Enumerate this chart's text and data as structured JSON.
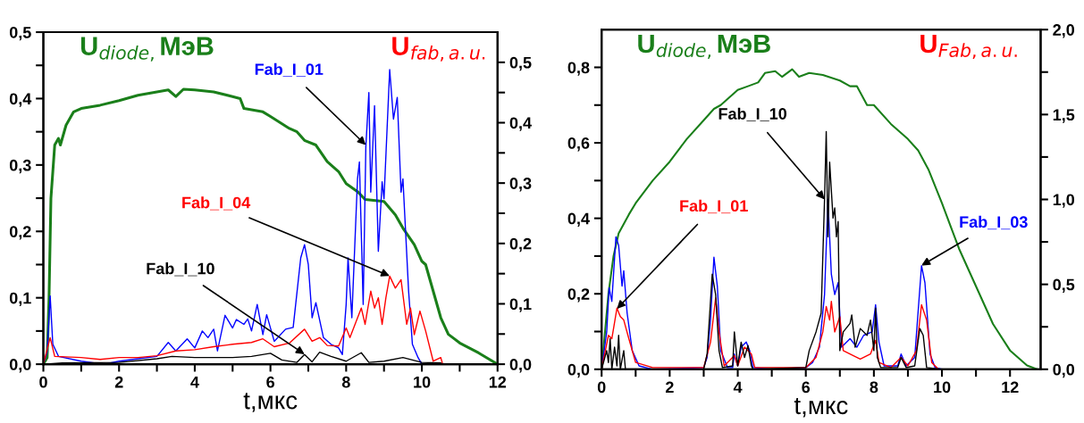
{
  "chart_data": [
    {
      "type": "line",
      "xlabel": "t,мкс",
      "ylabel": "U$_{diode,}$МэВ",
      "y2label": "U$_{fab,a.u.}$",
      "xlim": [
        0,
        12
      ],
      "xticks": [
        0,
        {
          "value": 1,
          "label": null
        },
        2,
        {
          "value": 3,
          "label": null
        },
        4,
        {
          "value": 5,
          "label": null
        },
        6,
        {
          "value": 7,
          "label": null
        },
        8,
        {
          "value": 9,
          "label": null
        },
        10,
        {
          "value": 11,
          "label": null
        },
        12
      ],
      "ylim": [
        0,
        0.5
      ],
      "yticks": [
        {
          "value": 0,
          "label": "0,0"
        },
        {
          "value": 0.05,
          "label": null
        },
        {
          "value": 0.1,
          "label": "0,1"
        },
        {
          "value": 0.15,
          "label": null
        },
        {
          "value": 0.2,
          "label": "0,2"
        },
        {
          "value": 0.25,
          "label": null
        },
        {
          "value": 0.3,
          "label": "0,3"
        },
        {
          "value": 0.35,
          "label": null
        },
        {
          "value": 0.4,
          "label": "0,4"
        },
        {
          "value": 0.45,
          "label": null
        },
        {
          "value": 0.5,
          "label": "0,5"
        }
      ],
      "y2lim": [
        0,
        0.55
      ],
      "y2ticks": [
        {
          "value": 0,
          "label": "0,0"
        },
        {
          "value": 0.05,
          "label": null
        },
        {
          "value": 0.1,
          "label": "0,1"
        },
        {
          "value": 0.15,
          "label": null
        },
        {
          "value": 0.2,
          "label": "0,2"
        },
        {
          "value": 0.25,
          "label": null
        },
        {
          "value": 0.3,
          "label": "0,3"
        },
        {
          "value": 0.35,
          "label": null
        },
        {
          "value": 0.4,
          "label": "0,4"
        },
        {
          "value": 0.45,
          "label": null
        },
        {
          "value": 0.5,
          "label": "0,5"
        }
      ],
      "grid": false,
      "series": [
        {
          "color": "#1a7f1a",
          "x": [
            0,
            0.1,
            0.15,
            0.2,
            0.3,
            0.4,
            0.45,
            0.6,
            0.8,
            1.0,
            1.5,
            2.0,
            2.5,
            3.0,
            3.3,
            3.5,
            3.7,
            4.0,
            4.5,
            5.0,
            5.2,
            5.3,
            5.8,
            6.0,
            6.5,
            6.7,
            6.9,
            7.2,
            7.5,
            7.8,
            8.0,
            8.3,
            8.5,
            9.0,
            9.3,
            9.5,
            9.8,
            10.0,
            10.1,
            10.3,
            10.5,
            10.7,
            11.0,
            11.5,
            12.0
          ],
          "values": [
            0,
            0.01,
            0.1,
            0.25,
            0.33,
            0.34,
            0.33,
            0.36,
            0.38,
            0.385,
            0.39,
            0.397,
            0.405,
            0.41,
            0.413,
            0.403,
            0.414,
            0.413,
            0.41,
            0.403,
            0.4,
            0.385,
            0.38,
            0.373,
            0.355,
            0.35,
            0.337,
            0.33,
            0.305,
            0.29,
            0.272,
            0.26,
            0.248,
            0.245,
            0.225,
            0.205,
            0.18,
            0.155,
            0.15,
            0.11,
            0.07,
            0.045,
            0.032,
            0.017,
            0
          ]
        },
        {
          "color": "#0000ff",
          "axis": "y2",
          "x": [
            0,
            0.1,
            0.18,
            0.25,
            0.4,
            1.0,
            1.6,
            2.0,
            2.5,
            3.0,
            3.3,
            3.5,
            3.8,
            4.0,
            4.2,
            4.35,
            4.5,
            4.6,
            4.8,
            5.0,
            5.1,
            5.3,
            5.4,
            5.5,
            5.65,
            5.8,
            5.9,
            6.1,
            6.4,
            6.6,
            6.8,
            6.9,
            7.0,
            7.1,
            7.2,
            7.4,
            7.6,
            7.8,
            7.9,
            8.0,
            8.05,
            8.15,
            8.3,
            8.35,
            8.45,
            8.52,
            8.6,
            8.65,
            8.75,
            8.85,
            8.95,
            9.0,
            9.15,
            9.25,
            9.35,
            9.45,
            9.5,
            9.65,
            9.75,
            9.9,
            10.0,
            10.5
          ],
          "values": [
            0,
            0.02,
            0.113,
            0.033,
            0.013,
            0.005,
            0,
            0.005,
            0.009,
            0.013,
            0.036,
            0.022,
            0.042,
            0.027,
            0.055,
            0.044,
            0.058,
            0.022,
            0.081,
            0.06,
            0.074,
            0.066,
            0.075,
            0.055,
            0.099,
            0.049,
            0.082,
            0.038,
            0.058,
            0.061,
            0.176,
            0.198,
            0.165,
            0.077,
            0.102,
            0.044,
            0.033,
            0.027,
            0.016,
            0.099,
            0.176,
            0.077,
            0.307,
            0.335,
            0.099,
            0.36,
            0.45,
            0.285,
            0.428,
            0.187,
            0.302,
            0.274,
            0.488,
            0.406,
            0.442,
            0.285,
            0.307,
            0.121,
            0.033,
            0.011,
            0,
            0
          ]
        },
        {
          "color": "#ff0000",
          "axis": "y2",
          "x": [
            0,
            0.18,
            0.3,
            1.0,
            1.5,
            2.0,
            2.5,
            3.0,
            3.5,
            4.0,
            4.5,
            5.0,
            5.5,
            5.8,
            6.1,
            6.5,
            6.9,
            7.1,
            7.3,
            7.5,
            7.8,
            8.0,
            8.1,
            8.4,
            8.5,
            8.65,
            8.75,
            8.85,
            8.95,
            9.05,
            9.15,
            9.3,
            9.45,
            9.6,
            9.7,
            9.8,
            9.95,
            10.1,
            10.3,
            10.5,
            10.55
          ],
          "values": [
            0,
            0.044,
            0.013,
            0.011,
            0.008,
            0.011,
            0.011,
            0.014,
            0.022,
            0.024,
            0.029,
            0.033,
            0.036,
            0.042,
            0.029,
            0.035,
            0.058,
            0.038,
            0.044,
            0.031,
            0.03,
            0.06,
            0.044,
            0.093,
            0.066,
            0.121,
            0.093,
            0.11,
            0.066,
            0.11,
            0.146,
            0.126,
            0.14,
            0.066,
            0.093,
            0.049,
            0.088,
            0.055,
            0.005,
            0.011,
            0
          ]
        },
        {
          "color": "#000000",
          "axis": "y2",
          "x": [
            0,
            0.5,
            2.0,
            3.0,
            3.4,
            4.0,
            5.0,
            5.5,
            6.0,
            6.3,
            6.7,
            6.9,
            7.1,
            7.3,
            7.6,
            8.0,
            8.4,
            8.6,
            9.0,
            9.5,
            10.0,
            10.5
          ],
          "values": [
            0,
            0.002,
            0.003,
            0.009,
            0.013,
            0.011,
            0.011,
            0.013,
            0.018,
            0.007,
            0.003,
            0.016,
            0.004,
            0.02,
            0.013,
            0.005,
            0.019,
            0.003,
            0.005,
            0.011,
            0.003,
            0.002
          ]
        }
      ],
      "annotations": [
        {
          "text": "Fab_I_01",
          "x": 8.52,
          "y": 0.33
        },
        {
          "text": "Fab_I_04",
          "x": 9.15,
          "y": 0.133
        },
        {
          "text": "Fab_I_10",
          "x": 6.9,
          "y": 0.015
        }
      ]
    },
    {
      "type": "line",
      "xlabel": "t,мкс",
      "ylabel": "U$_{diode,}$МэВ",
      "y2label": "U$_{Fab,a.u.}$",
      "xlim": [
        0,
        12.9
      ],
      "xticks": [
        0,
        {
          "value": 1,
          "label": null
        },
        2,
        {
          "value": 3,
          "label": null
        },
        4,
        {
          "value": 5,
          "label": null
        },
        6,
        {
          "value": 7,
          "label": null
        },
        8,
        {
          "value": 9,
          "label": null
        },
        10,
        {
          "value": 11,
          "label": null
        },
        12
      ],
      "ylim": [
        0,
        0.9
      ],
      "yticks": [
        {
          "value": 0,
          "label": "0,0"
        },
        {
          "value": 0.1,
          "label": null
        },
        {
          "value": 0.2,
          "label": "0,2"
        },
        {
          "value": 0.3,
          "label": null
        },
        {
          "value": 0.4,
          "label": "0,4"
        },
        {
          "value": 0.5,
          "label": null
        },
        {
          "value": 0.6,
          "label": "0,6"
        },
        {
          "value": 0.7,
          "label": null
        },
        {
          "value": 0.8,
          "label": "0,8"
        }
      ],
      "y2lim": [
        0,
        2.0
      ],
      "y2ticks": [
        {
          "value": 0,
          "label": "0,0"
        },
        {
          "value": 0.25,
          "label": null
        },
        {
          "value": 0.5,
          "label": "0,5"
        },
        {
          "value": 0.75,
          "label": null
        },
        {
          "value": 1.0,
          "label": "1,0"
        },
        {
          "value": 1.25,
          "label": null
        },
        {
          "value": 1.5,
          "label": "1,5"
        },
        {
          "value": 1.75,
          "label": null
        },
        {
          "value": 2.0,
          "label": "2,0"
        }
      ],
      "grid": false,
      "series": [
        {
          "color": "#1a7f1a",
          "x": [
            0,
            0.2,
            0.35,
            0.5,
            0.8,
            1.0,
            1.5,
            2.0,
            2.5,
            3.0,
            3.3,
            3.5,
            4.0,
            4.3,
            4.6,
            4.8,
            5.1,
            5.3,
            5.6,
            5.8,
            6.1,
            6.5,
            7.0,
            7.3,
            7.5,
            7.8,
            8.0,
            8.5,
            9.0,
            9.3,
            9.6,
            10.0,
            10.5,
            11.0,
            11.5,
            12.0,
            12.5,
            12.8
          ],
          "values": [
            0,
            0.2,
            0.3,
            0.36,
            0.41,
            0.44,
            0.5,
            0.55,
            0.61,
            0.66,
            0.69,
            0.7,
            0.74,
            0.75,
            0.76,
            0.785,
            0.79,
            0.775,
            0.795,
            0.775,
            0.785,
            0.78,
            0.765,
            0.75,
            0.75,
            0.7,
            0.7,
            0.65,
            0.61,
            0.58,
            0.53,
            0.44,
            0.32,
            0.22,
            0.12,
            0.05,
            0.01,
            0
          ]
        },
        {
          "color": "#0000ff",
          "axis": "y2",
          "x": [
            0,
            0.15,
            0.22,
            0.3,
            0.42,
            0.5,
            0.6,
            0.65,
            0.75,
            0.9,
            1.1,
            1.5,
            3.0,
            3.1,
            3.2,
            3.3,
            3.4,
            3.5,
            3.7,
            3.85,
            3.9,
            4.0,
            4.1,
            4.25,
            4.35,
            4.45,
            5.0,
            6.0,
            6.2,
            6.4,
            6.55,
            6.65,
            6.75,
            6.85,
            6.95,
            7.05,
            7.3,
            7.5,
            7.7,
            7.95,
            8.05,
            8.15,
            8.3,
            8.7,
            8.8,
            8.95,
            9.2,
            9.4,
            9.5,
            9.65,
            9.8,
            10.0
          ],
          "values": [
            0,
            0.22,
            0.48,
            0.4,
            0.78,
            0.73,
            0.49,
            0.58,
            0.33,
            0.11,
            0.02,
            0,
            0.01,
            0.07,
            0.29,
            0.66,
            0.49,
            0.11,
            0.01,
            0.01,
            0.09,
            0.02,
            0.13,
            0.16,
            0.11,
            0.01,
            0,
            0.01,
            0.04,
            0.13,
            0.44,
            1.0,
            0.56,
            0.44,
            0.51,
            0.13,
            0.18,
            0.13,
            0.2,
            0.22,
            0.38,
            0.16,
            0.02,
            0.02,
            0.09,
            0.02,
            0.07,
            0.61,
            0.51,
            0.09,
            0.01,
            0
          ]
        },
        {
          "color": "#ff0000",
          "axis": "y2",
          "x": [
            0,
            0.2,
            0.3,
            0.45,
            0.55,
            0.65,
            0.8,
            1.0,
            1.5,
            3.0,
            3.2,
            3.35,
            3.45,
            3.6,
            3.9,
            4.0,
            4.2,
            4.4,
            4.5,
            6.0,
            6.3,
            6.5,
            6.6,
            6.7,
            6.75,
            6.85,
            7.0,
            7.1,
            7.4,
            7.6,
            7.9,
            8.05,
            8.15,
            8.5,
            8.8,
            9.0,
            9.25,
            9.4,
            9.55,
            9.7,
            9.9
          ],
          "values": [
            0,
            0.2,
            0.18,
            0.36,
            0.31,
            0.29,
            0.18,
            0.04,
            0.01,
            0.01,
            0.16,
            0.42,
            0.22,
            0.02,
            0.08,
            0.02,
            0.13,
            0.09,
            0.01,
            0.01,
            0.07,
            0.22,
            0.37,
            0.29,
            0.4,
            0.22,
            0.31,
            0.11,
            0.08,
            0.06,
            0.09,
            0.17,
            0.04,
            0.01,
            0.07,
            0.02,
            0.11,
            0.38,
            0.29,
            0.04,
            0
          ]
        },
        {
          "color": "#000000",
          "axis": "y2",
          "x": [
            0,
            0.15,
            0.2,
            0.25,
            0.3,
            0.38,
            0.45,
            0.5,
            0.55,
            0.65,
            0.7,
            1.0,
            3.0,
            3.1,
            3.25,
            3.35,
            3.45,
            3.55,
            3.85,
            3.9,
            4.0,
            4.1,
            4.2,
            4.3,
            4.4,
            4.45,
            6.0,
            6.1,
            6.3,
            6.45,
            6.55,
            6.6,
            6.65,
            6.7,
            6.8,
            6.85,
            6.9,
            6.95,
            7.0,
            7.1,
            7.3,
            7.35,
            7.45,
            7.6,
            7.8,
            7.9,
            8.0,
            8.05,
            8.1,
            8.2,
            8.7,
            8.8,
            8.95,
            9.2,
            9.35,
            9.45,
            9.55,
            10.0
          ],
          "values": [
            0,
            0.11,
            0.04,
            0.18,
            0,
            0.13,
            0.02,
            0.2,
            0,
            0.11,
            0,
            0,
            0,
            0.09,
            0.56,
            0.44,
            0.11,
            0.01,
            0.02,
            0.22,
            0.02,
            0.16,
            0.07,
            0.14,
            0.02,
            0,
            0.01,
            0.11,
            0.22,
            0.33,
            1.0,
            1.4,
            0.78,
            1.22,
            0.89,
            0.95,
            0.78,
            0.87,
            0.11,
            0.22,
            0.27,
            0.32,
            0.13,
            0.24,
            0.2,
            0.29,
            0.11,
            0.36,
            0.07,
            0.01,
            0.01,
            0.07,
            0.01,
            0.02,
            0.24,
            0.2,
            0.01,
            0
          ]
        }
      ],
      "annotations": [
        {
          "text": "Fab_I_01",
          "x": 0.45,
          "y": 0.16
        },
        {
          "text": "Fab_I_10",
          "x": 6.55,
          "y": 0.45
        },
        {
          "text": "Fab_I_03",
          "x": 9.4,
          "y": 0.275
        }
      ]
    }
  ]
}
